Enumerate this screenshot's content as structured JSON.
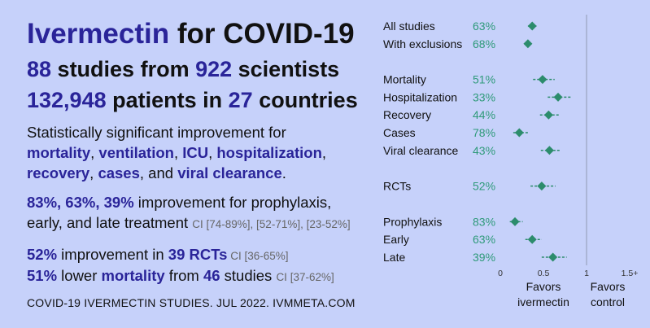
{
  "header": {
    "title_drug": "Ivermectin",
    "title_rest": " for COVID-19",
    "studies_count": "88",
    "studies_text": " studies from ",
    "scientists_count": "922",
    "scientists_text": " scientists",
    "patients_count": "132,948",
    "patients_text": " patients in ",
    "countries_count": "27",
    "countries_text": " countries"
  },
  "summary": {
    "intro": "Statistically significant improvement for",
    "outcomes": [
      "mortality",
      "ventilation",
      "ICU",
      "hospitalization",
      "recovery",
      "cases",
      "viral clearance"
    ],
    "sep": ", ",
    "and_text": ", and ",
    "end": "."
  },
  "treatment": {
    "values": "83%, 63%, 39%",
    "text1": " improvement for prophylaxis,",
    "text2": "early, and late treatment ",
    "ci": "CI [74-89%], [52-71%], [23-52%]"
  },
  "rct": {
    "value": "52%",
    "text": " improvement in ",
    "count": "39 RCTs",
    "ci": " CI [36-65%]"
  },
  "mortality": {
    "value": "51%",
    "text1": " lower ",
    "word": "mortality",
    "text2": " from ",
    "count": "46",
    "text3": " studies ",
    "ci": "CI [37-62%]"
  },
  "footer": "COVID-19 IVERMECTIN STUDIES. JUL 2022. IVMMETA.COM",
  "chart_data": {
    "type": "forest",
    "rows": [
      {
        "label": "All studies",
        "pct": "63%",
        "rr": 0.37,
        "lo": 0.32,
        "hi": 0.42
      },
      {
        "label": "With exclusions",
        "pct": "68%",
        "rr": 0.32,
        "lo": 0.28,
        "hi": 0.36
      },
      {
        "label": "Mortality",
        "pct": "51%",
        "rr": 0.49,
        "lo": 0.38,
        "hi": 0.63
      },
      {
        "label": "Hospitalization",
        "pct": "33%",
        "rr": 0.67,
        "lo": 0.55,
        "hi": 0.82
      },
      {
        "label": "Recovery",
        "pct": "44%",
        "rr": 0.56,
        "lo": 0.46,
        "hi": 0.68
      },
      {
        "label": "Cases",
        "pct": "78%",
        "rr": 0.22,
        "lo": 0.15,
        "hi": 0.32
      },
      {
        "label": "Viral clearance",
        "pct": "43%",
        "rr": 0.57,
        "lo": 0.47,
        "hi": 0.69
      },
      {
        "label": "RCTs",
        "pct": "52%",
        "rr": 0.48,
        "lo": 0.35,
        "hi": 0.64
      },
      {
        "label": "Prophylaxis",
        "pct": "83%",
        "rr": 0.17,
        "lo": 0.11,
        "hi": 0.26
      },
      {
        "label": "Early",
        "pct": "63%",
        "rr": 0.37,
        "lo": 0.29,
        "hi": 0.48
      },
      {
        "label": "Late",
        "pct": "39%",
        "rr": 0.61,
        "lo": 0.48,
        "hi": 0.77
      }
    ],
    "groups": [
      [
        0,
        1
      ],
      [
        2,
        3,
        4,
        5,
        6
      ],
      [
        7
      ],
      [
        8,
        9,
        10
      ]
    ],
    "xlim": [
      0,
      1.5
    ],
    "ticks": [
      "0",
      "0.5",
      "1",
      "1.5+"
    ],
    "tick_values": [
      0,
      0.5,
      1,
      1.5
    ],
    "reference_line": 1,
    "favors_left": [
      "Favors",
      "ivermectin"
    ],
    "favors_right": [
      "Favors",
      "control"
    ],
    "marker_color": "#2c8c6c",
    "pct_color": "#2f9a7a"
  }
}
